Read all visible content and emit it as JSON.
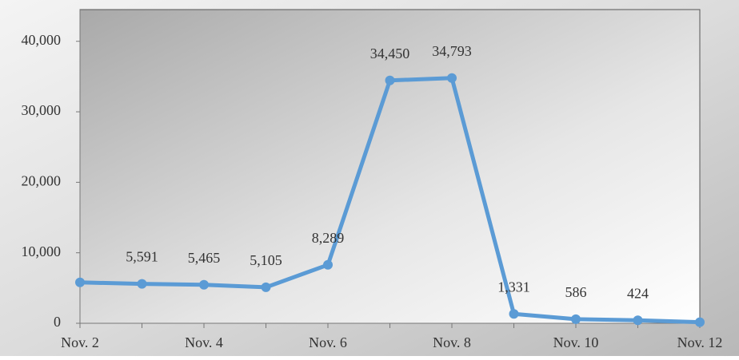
{
  "chart_data": {
    "type": "line",
    "categories": [
      "Nov. 2",
      null,
      "Nov. 4",
      null,
      "Nov. 6",
      null,
      "Nov. 8",
      null,
      "Nov. 10",
      null,
      "Nov. 12"
    ],
    "series": [
      {
        "color": "#5b9bd5",
        "values": [
          5800,
          5591,
          5465,
          5105,
          8289,
          34450,
          34793,
          1331,
          586,
          424,
          150
        ],
        "value_labels": [
          null,
          "5,591",
          "5,465",
          "5,105",
          "8,289",
          "34,450",
          "34,793",
          "1,331",
          "586",
          "424",
          null
        ]
      }
    ],
    "ylim": [
      0,
      44500
    ],
    "yticks": [
      0,
      {
        "value": 10000,
        "label": "10,000"
      },
      {
        "value": 20000,
        "label": "20,000"
      },
      {
        "value": 30000,
        "label": "30,000"
      },
      {
        "value": 40000,
        "label": "40,000"
      }
    ],
    "grid": false
  }
}
